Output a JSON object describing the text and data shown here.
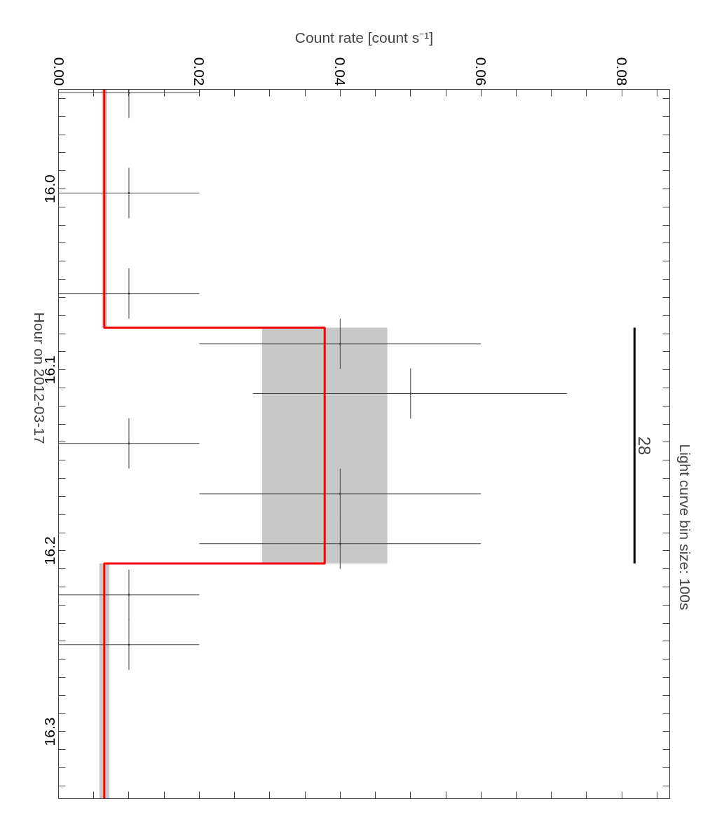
{
  "chart_data": {
    "type": "scatter",
    "orientation": "horizontal",
    "xlabel": "Count rate [count s⁻¹]",
    "ylabel": "Hour on 2012-03-17",
    "xlim": [
      0,
      0.0868
    ],
    "ylim": [
      16.337,
      15.945
    ],
    "xticks": [
      {
        "value": 0,
        "label": "0.00"
      },
      {
        "value": 0.005,
        "label": null
      },
      {
        "value": 0.01,
        "label": null
      },
      {
        "value": 0.015,
        "label": null
      },
      {
        "value": 0.02,
        "label": "0.02"
      },
      {
        "value": 0.025,
        "label": null
      },
      {
        "value": 0.03,
        "label": null
      },
      {
        "value": 0.035,
        "label": null
      },
      {
        "value": 0.04,
        "label": "0.04"
      },
      {
        "value": 0.045,
        "label": null
      },
      {
        "value": 0.05,
        "label": null
      },
      {
        "value": 0.055,
        "label": null
      },
      {
        "value": 0.06,
        "label": "0.06"
      },
      {
        "value": 0.065,
        "label": null
      },
      {
        "value": 0.07,
        "label": null
      },
      {
        "value": 0.075,
        "label": null
      },
      {
        "value": 0.08,
        "label": "0.08"
      },
      {
        "value": 0.085,
        "label": null
      }
    ],
    "yticks": [
      {
        "value": 15.95,
        "label": null
      },
      {
        "value": 15.96,
        "label": null
      },
      {
        "value": 15.97,
        "label": null
      },
      {
        "value": 15.98,
        "label": null
      },
      {
        "value": 15.99,
        "label": null
      },
      {
        "value": 16.0,
        "label": "16.0"
      },
      {
        "value": 16.01,
        "label": null
      },
      {
        "value": 16.02,
        "label": null
      },
      {
        "value": 16.03,
        "label": null
      },
      {
        "value": 16.04,
        "label": null
      },
      {
        "value": 16.05,
        "label": null
      },
      {
        "value": 16.06,
        "label": null
      },
      {
        "value": 16.07,
        "label": null
      },
      {
        "value": 16.08,
        "label": null
      },
      {
        "value": 16.09,
        "label": null
      },
      {
        "value": 16.1,
        "label": "16.1"
      },
      {
        "value": 16.11,
        "label": null
      },
      {
        "value": 16.12,
        "label": null
      },
      {
        "value": 16.13,
        "label": null
      },
      {
        "value": 16.14,
        "label": null
      },
      {
        "value": 16.15,
        "label": null
      },
      {
        "value": 16.16,
        "label": null
      },
      {
        "value": 16.17,
        "label": null
      },
      {
        "value": 16.18,
        "label": null
      },
      {
        "value": 16.19,
        "label": null
      },
      {
        "value": 16.2,
        "label": "16.2"
      },
      {
        "value": 16.21,
        "label": null
      },
      {
        "value": 16.22,
        "label": null
      },
      {
        "value": 16.23,
        "label": null
      },
      {
        "value": 16.24,
        "label": null
      },
      {
        "value": 16.25,
        "label": null
      },
      {
        "value": 16.26,
        "label": null
      },
      {
        "value": 16.27,
        "label": null
      },
      {
        "value": 16.28,
        "label": null
      },
      {
        "value": 16.29,
        "label": null
      },
      {
        "value": 16.3,
        "label": "16.3"
      },
      {
        "value": 16.31,
        "label": null
      },
      {
        "value": 16.32,
        "label": null
      },
      {
        "value": 16.33,
        "label": null
      }
    ],
    "grid": false,
    "marker": "none",
    "line_style": "solid",
    "series": [
      {
        "color": "#404040",
        "x": [
          15.9469,
          16.0023,
          16.0578,
          16.0857,
          16.1131,
          16.1407,
          16.1686,
          16.1961,
          16.2244,
          16.2519
        ],
        "values": [
          0.01,
          0.01,
          0.01,
          0.04,
          0.05,
          0.01,
          0.04,
          0.04,
          0.01,
          0.01
        ],
        "errors": [
          0.01,
          0.01,
          0.01,
          0.02,
          [
            0.0276,
            0.0722
          ],
          0.01,
          0.02,
          0.02,
          0.01,
          0.01
        ],
        "xerrors": [
          0.0139,
          0.0139,
          0.0139,
          0.0139,
          0.0139,
          0.0139,
          0.0139,
          0.0139,
          0.0139,
          0.0139
        ]
      },
      {
        "type": "line",
        "color": "#ff0000",
        "x": [
          15.945,
          16.0767,
          16.0767,
          16.207,
          16.207,
          16.337
        ],
        "values": [
          0.0065,
          0.0065,
          0.0378,
          0.0378,
          0.0065,
          0.0065
        ],
        "lower": [
          0.0062,
          0.0062,
          0.0289,
          0.0289,
          0.0058,
          0.0058
        ],
        "upper": [
          0.0069,
          0.0069,
          0.0467,
          0.0467,
          0.0072,
          0.0072
        ]
      },
      {
        "type": "line",
        "color": "#000000",
        "x": [
          16.0767,
          16.207
        ],
        "values": [
          0.0818,
          0.0818
        ]
      }
    ],
    "annotations": [
      {
        "text": "28",
        "x": 0.0818,
        "y": 16.142
      },
      "Light curve bin size: 100s"
    ]
  }
}
